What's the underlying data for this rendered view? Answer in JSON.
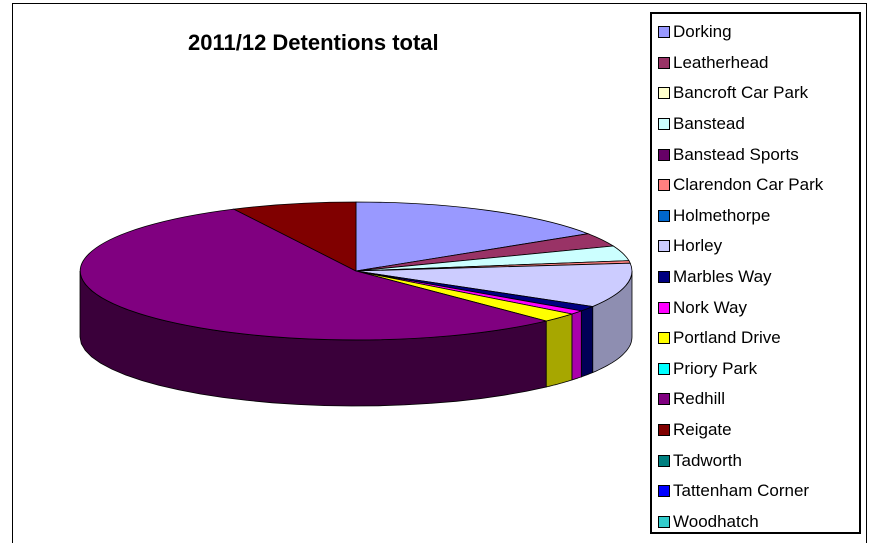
{
  "chart_data": {
    "type": "pie",
    "title": "2011/12 Detentions total",
    "legend_position": "right",
    "style": "3d",
    "categories": [
      "Dorking",
      "Leatherhead",
      "Bancroft Car Park",
      "Banstead",
      "Banstead Sports",
      "Clarendon Car Park",
      "Holmethorpe",
      "Horley",
      "Marbles Way",
      "Nork Way",
      "Portland Drive",
      "Priory Park",
      "Redhill",
      "Reigate",
      "Tadworth",
      "Tattenham Corner",
      "Woodhatch"
    ],
    "values": [
      15.9,
      3.2,
      0,
      3.5,
      0,
      0.6,
      0,
      10.4,
      1.2,
      0.9,
      2.2,
      0,
      54.8,
      7.3,
      0,
      0,
      0
    ],
    "colors": [
      "#9999FF",
      "#993366",
      "#FFFFCC",
      "#CCFFFF",
      "#660066",
      "#FF8080",
      "#0066CC",
      "#CCCCFF",
      "#000080",
      "#FF00FF",
      "#FFFF00",
      "#00FFFF",
      "#800080",
      "#800000",
      "#008080",
      "#0000FF",
      "#33CCCC"
    ]
  }
}
